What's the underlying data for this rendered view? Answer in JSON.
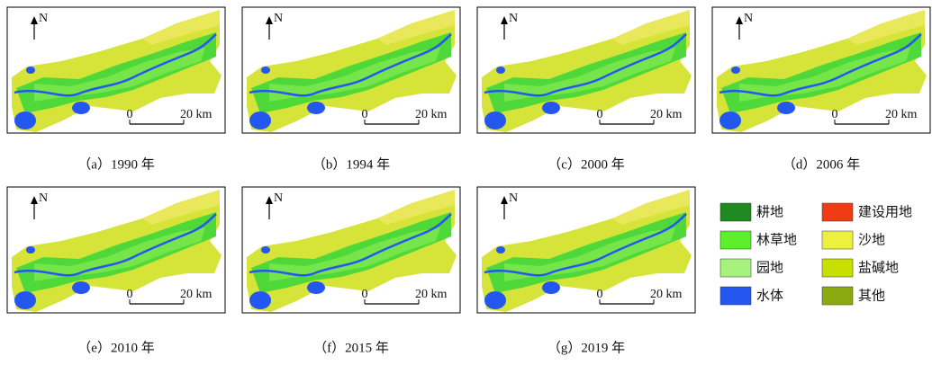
{
  "panels": [
    {
      "caption": "（a）1990 年",
      "north": "N",
      "scale_start": "0",
      "scale_end": "20 km"
    },
    {
      "caption": "（b）1994 年",
      "north": "N",
      "scale_start": "0",
      "scale_end": "20 km"
    },
    {
      "caption": "（c）2000 年",
      "north": "N",
      "scale_start": "0",
      "scale_end": "20 km"
    },
    {
      "caption": "（d）2006 年",
      "north": "N",
      "scale_start": "0",
      "scale_end": "20 km"
    },
    {
      "caption": "（e）2010 年",
      "north": "N",
      "scale_start": "0",
      "scale_end": "20 km"
    },
    {
      "caption": "（f）2015 年",
      "north": "N",
      "scale_start": "0",
      "scale_end": "20 km"
    },
    {
      "caption": "（g）2019 年",
      "north": "N",
      "scale_start": "0",
      "scale_end": "20 km"
    }
  ],
  "legend": [
    {
      "label": "耕地",
      "color": "#1f8a1f"
    },
    {
      "label": "林草地",
      "color": "#5cf02c"
    },
    {
      "label": "园地",
      "color": "#a6f27c"
    },
    {
      "label": "水体",
      "color": "#2457f0"
    },
    {
      "label": "建设用地",
      "color": "#f03c14"
    },
    {
      "label": "沙地",
      "color": "#eef040"
    },
    {
      "label": "盐碱地",
      "color": "#c8e000"
    },
    {
      "label": "其他",
      "color": "#8aaa10"
    }
  ]
}
